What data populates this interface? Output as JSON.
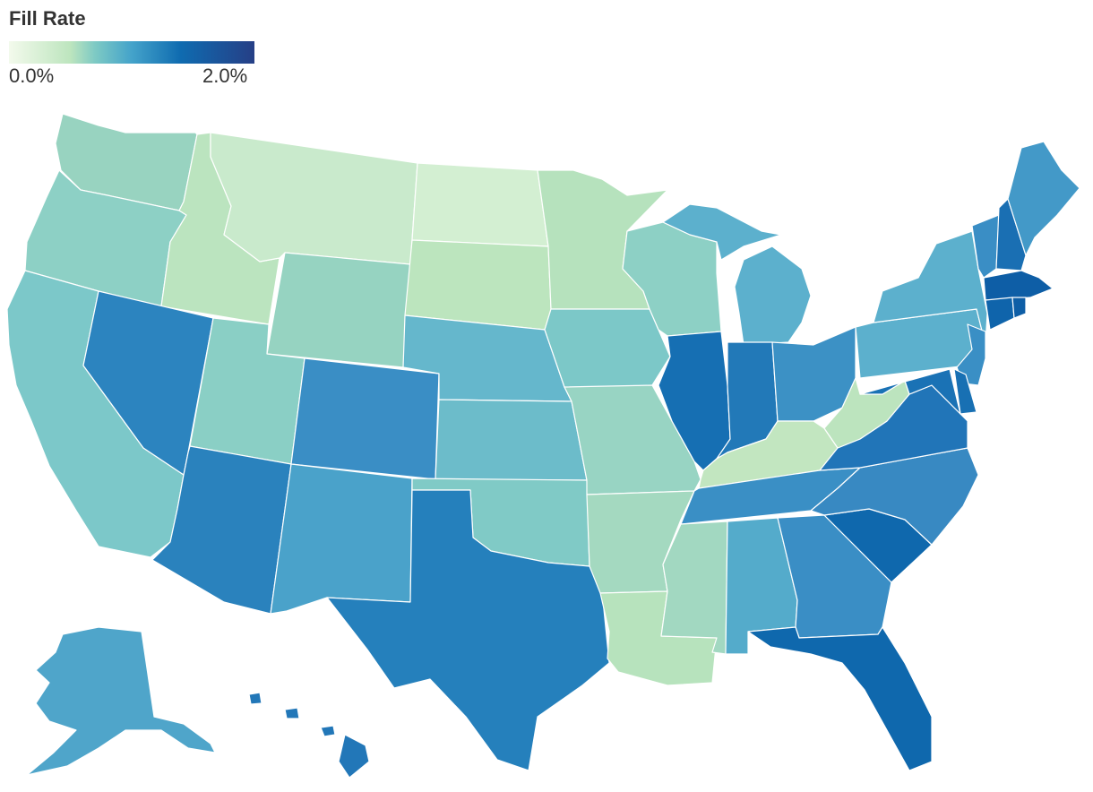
{
  "legend": {
    "title": "Fill Rate",
    "min_label": "0.0%",
    "max_label": "2.0%",
    "scale": [
      {
        "offset": 0.0,
        "color": "#f3faec"
      },
      {
        "offset": 0.25,
        "color": "#bde5be"
      },
      {
        "offset": 0.35,
        "color": "#7ecac4"
      },
      {
        "offset": 0.5,
        "color": "#44a3ca"
      },
      {
        "offset": 0.7,
        "color": "#0f6bb0"
      },
      {
        "offset": 1.0,
        "color": "#263f86"
      }
    ]
  },
  "map": {
    "states": [
      {
        "code": "WA",
        "color": "#98d3c0"
      },
      {
        "code": "OR",
        "color": "#8dd0c5"
      },
      {
        "code": "CA",
        "color": "#7cc8c9"
      },
      {
        "code": "ID",
        "color": "#bbe4bf"
      },
      {
        "code": "NV",
        "color": "#2c84bf"
      },
      {
        "code": "MT",
        "color": "#c9eacc"
      },
      {
        "code": "WY",
        "color": "#96d3c1"
      },
      {
        "code": "UT",
        "color": "#8acfc5"
      },
      {
        "code": "AZ",
        "color": "#2a82bd"
      },
      {
        "code": "CO",
        "color": "#3a8ec5"
      },
      {
        "code": "NM",
        "color": "#4aa2ca"
      },
      {
        "code": "ND",
        "color": "#d3efd2"
      },
      {
        "code": "SD",
        "color": "#bce5be"
      },
      {
        "code": "NE",
        "color": "#65b7cc"
      },
      {
        "code": "KS",
        "color": "#6cbcca"
      },
      {
        "code": "OK",
        "color": "#80cac6"
      },
      {
        "code": "TX",
        "color": "#2580bc"
      },
      {
        "code": "MN",
        "color": "#b6e2bd"
      },
      {
        "code": "IA",
        "color": "#7cc8c8"
      },
      {
        "code": "MO",
        "color": "#98d4c3"
      },
      {
        "code": "AR",
        "color": "#a4d9c0"
      },
      {
        "code": "LA",
        "color": "#b7e3bd"
      },
      {
        "code": "WI",
        "color": "#8dd0c5"
      },
      {
        "code": "IL",
        "color": "#166fb3"
      },
      {
        "code": "MI",
        "color": "#5cb0cd"
      },
      {
        "code": "IN",
        "color": "#2279b8"
      },
      {
        "code": "OH",
        "color": "#3c91c5"
      },
      {
        "code": "KY",
        "color": "#c2e6c0"
      },
      {
        "code": "TN",
        "color": "#3a8fc5"
      },
      {
        "code": "MS",
        "color": "#a2d8c1"
      },
      {
        "code": "AL",
        "color": "#54abcb"
      },
      {
        "code": "GA",
        "color": "#3a8ec5"
      },
      {
        "code": "FL",
        "color": "#0f68ad"
      },
      {
        "code": "SC",
        "color": "#0f68ad"
      },
      {
        "code": "NC",
        "color": "#3889c2"
      },
      {
        "code": "VA",
        "color": "#2175b8"
      },
      {
        "code": "WV",
        "color": "#bce4be"
      },
      {
        "code": "PA",
        "color": "#5cb0cd"
      },
      {
        "code": "NY",
        "color": "#5cb0cd"
      },
      {
        "code": "NJ",
        "color": "#3a8fc5"
      },
      {
        "code": "DE",
        "color": "#1870b3"
      },
      {
        "code": "MD",
        "color": "#1a72b5"
      },
      {
        "code": "VT",
        "color": "#3a8ec5"
      },
      {
        "code": "NH",
        "color": "#1a6fb3"
      },
      {
        "code": "ME",
        "color": "#4399c8"
      },
      {
        "code": "MA",
        "color": "#0e5ea6"
      },
      {
        "code": "CT",
        "color": "#0f64ab"
      },
      {
        "code": "RI",
        "color": "#0e5ea6"
      },
      {
        "code": "AK",
        "color": "#4fa5ca"
      },
      {
        "code": "HI",
        "color": "#2277b8"
      }
    ]
  }
}
